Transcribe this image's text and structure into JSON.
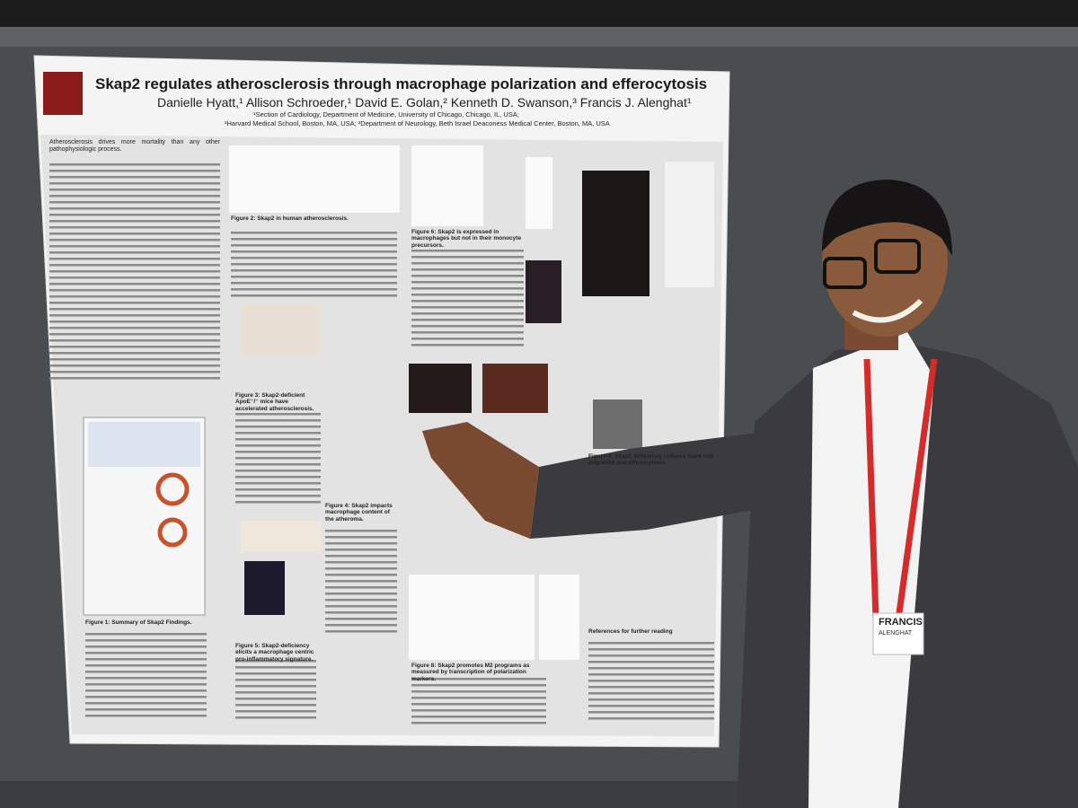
{
  "poster": {
    "title": "Skap2 regulates atherosclerosis through macrophage polarization and efferocytosis",
    "authors": "Danielle Hyatt,¹ Allison Schroeder,¹ David E. Golan,² Kenneth D. Swanson,³ Francis J. Alenghat¹",
    "affiliations": [
      "¹Section of Cardiology, Department of Medicine, University of Chicago, Chicago, IL, USA;",
      "²Harvard Medical School, Boston, MA, USA; ³Department of Neurology, Beth Israel Deaconess Medical Center, Boston, MA, USA"
    ],
    "intro": "Atherosclerosis drives more mortality than any other pathophysiologic process.",
    "captions": [
      "Figure 1: Summary of Skap2 Findings.",
      "Figure 2: Skap2 in human atherosclerosis.",
      "Figure 3: Skap2-deficient ApoE⁻/⁻ mice have accelerated atherosclerosis.",
      "Figure 4: Skap2 impacts macrophage content of the atheroma.",
      "Figure 5: Skap2-deficiency elicits a macrophage centric pro-inflammatory signature.",
      "Figure 6: Skap2 is expressed in macrophages but not in their monocyte precursors.",
      "Figure 8: Skap2 promotes M2 programs as measured by transcription of polarization markers.",
      "Figure 9: Skap2 deficiency reduces foam cell migration and efferocytosis.",
      "References for further reading"
    ]
  },
  "badge": {
    "first_name": "FRANCIS",
    "last_name": "ALENGHAT"
  }
}
